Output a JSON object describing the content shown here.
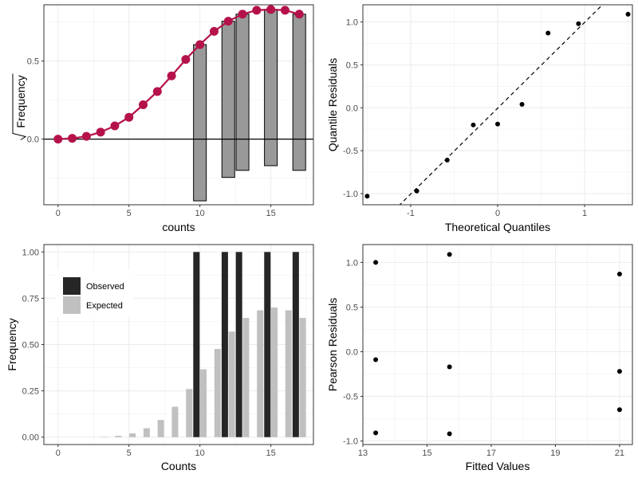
{
  "chart_data": [
    {
      "type": "rootogram",
      "xlabel": "counts",
      "ylabel": "Frequency",
      "xlim": [
        -1.0,
        18.0
      ],
      "ylim": [
        -0.42,
        0.86
      ],
      "xticks": [
        0,
        5,
        10,
        15
      ],
      "yticks": [
        0.0,
        0.5
      ],
      "x_tick_labels": [
        "0",
        "5",
        "10",
        "15"
      ],
      "y_tick_labels": [
        "0.0",
        "0.5"
      ],
      "grid": true,
      "curve_color": "#b5124b",
      "bar_color": "#999999",
      "expected": {
        "x": [
          0,
          1,
          2,
          3,
          4,
          5,
          6,
          7,
          8,
          9,
          10,
          11,
          12,
          13,
          14,
          15,
          16,
          17
        ],
        "y": [
          0.0,
          0.005,
          0.018,
          0.045,
          0.085,
          0.14,
          0.22,
          0.305,
          0.405,
          0.51,
          0.605,
          0.69,
          0.755,
          0.8,
          0.825,
          0.83,
          0.825,
          0.8
        ]
      },
      "bars": [
        {
          "x": 10,
          "top": 0.605,
          "bottom": -0.395
        },
        {
          "x": 12,
          "top": 0.755,
          "bottom": -0.245
        },
        {
          "x": 13,
          "top": 0.8,
          "bottom": -0.2
        },
        {
          "x": 15,
          "top": 0.83,
          "bottom": -0.17
        },
        {
          "x": 17,
          "top": 0.8,
          "bottom": -0.2
        }
      ]
    },
    {
      "type": "scatter",
      "xlabel": "Theoretical Quantiles",
      "ylabel": "Quantile Residuals",
      "xlim": [
        -1.55,
        1.55
      ],
      "ylim": [
        -1.13,
        1.2
      ],
      "xticks": [
        -1,
        0,
        1
      ],
      "yticks": [
        -1.0,
        -0.5,
        0.0,
        0.5,
        1.0
      ],
      "x_tick_labels": [
        "-1",
        "0",
        "1"
      ],
      "y_tick_labels": [
        "-1.0",
        "-0.5",
        "0.0",
        "0.5",
        "1.0"
      ],
      "grid": true,
      "reference_line": {
        "slope": 1.0,
        "intercept": -0.005,
        "style": "dashed"
      },
      "points": [
        {
          "x": -1.5,
          "y": -1.03
        },
        {
          "x": -0.93,
          "y": -0.97
        },
        {
          "x": -0.58,
          "y": -0.61
        },
        {
          "x": -0.28,
          "y": -0.2
        },
        {
          "x": 0.0,
          "y": -0.19
        },
        {
          "x": 0.28,
          "y": 0.04
        },
        {
          "x": 0.58,
          "y": 0.87
        },
        {
          "x": 0.93,
          "y": 0.98
        },
        {
          "x": 1.5,
          "y": 1.09
        }
      ]
    },
    {
      "type": "bar",
      "xlabel": "Counts",
      "ylabel": "Frequency",
      "xlim": [
        -1.0,
        18.0
      ],
      "ylim": [
        -0.04,
        1.04
      ],
      "xticks": [
        0,
        5,
        10,
        15
      ],
      "yticks": [
        0.0,
        0.25,
        0.5,
        0.75,
        1.0
      ],
      "x_tick_labels": [
        "0",
        "5",
        "10",
        "15"
      ],
      "y_tick_labels": [
        "0.00",
        "0.25",
        "0.50",
        "0.75",
        "1.00"
      ],
      "grid": true,
      "legend_position": "top-left",
      "series": [
        {
          "name": "Observed",
          "color": "#262626",
          "x": [
            10,
            12,
            13,
            15,
            17
          ],
          "values": [
            1.0,
            1.0,
            1.0,
            1.0,
            1.0
          ]
        },
        {
          "name": "Expected",
          "color": "#c0c0c0",
          "x": [
            0,
            1,
            2,
            3,
            4,
            5,
            6,
            7,
            8,
            9,
            10,
            11,
            12,
            13,
            14,
            15,
            16,
            17
          ],
          "values": [
            0.0,
            0.0,
            0.0,
            0.002,
            0.007,
            0.02,
            0.048,
            0.093,
            0.164,
            0.26,
            0.366,
            0.476,
            0.57,
            0.644,
            0.685,
            0.7,
            0.685,
            0.644
          ]
        }
      ]
    },
    {
      "type": "scatter",
      "xlabel": "Fitted Values",
      "ylabel": "Pearson Residuals",
      "xlim": [
        13.0,
        21.4
      ],
      "ylim": [
        -1.04,
        1.2
      ],
      "xticks": [
        13,
        15,
        17,
        19,
        21
      ],
      "yticks": [
        -1.0,
        -0.5,
        0.0,
        0.5,
        1.0
      ],
      "x_tick_labels": [
        "13",
        "15",
        "17",
        "19",
        "21"
      ],
      "y_tick_labels": [
        "-1.0",
        "-0.5",
        "0.0",
        "0.5",
        "1.0"
      ],
      "grid": true,
      "points": [
        {
          "x": 13.4,
          "y": 1.0
        },
        {
          "x": 13.4,
          "y": -0.09
        },
        {
          "x": 13.4,
          "y": -0.91
        },
        {
          "x": 15.7,
          "y": 1.09
        },
        {
          "x": 15.7,
          "y": -0.17
        },
        {
          "x": 15.7,
          "y": -0.92
        },
        {
          "x": 21.0,
          "y": 0.87
        },
        {
          "x": 21.0,
          "y": -0.22
        },
        {
          "x": 21.0,
          "y": -0.65
        }
      ]
    }
  ]
}
